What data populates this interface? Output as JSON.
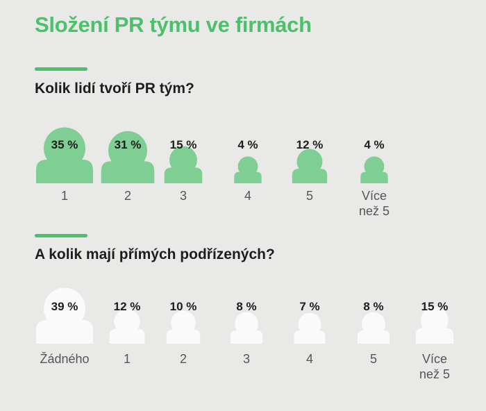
{
  "title": "Složení PR týmu ve firmách",
  "accent_color": "#4cc06a",
  "chart_data": [
    {
      "type": "bar",
      "title": "Kolik lidí tvoří PR tým?",
      "icon": "person-icon",
      "color": "#7fce94",
      "categories": [
        "1",
        "2",
        "3",
        "4",
        "5",
        "Více\nnež 5"
      ],
      "values": [
        35,
        31,
        15,
        4,
        12,
        4
      ],
      "value_labels": [
        "35 %",
        "31 %",
        "15 %",
        "4 %",
        "12 %",
        "4 %"
      ]
    },
    {
      "type": "bar",
      "title": "A kolik mají přímých podřízených?",
      "icon": "person-icon",
      "color": "#fafafa",
      "categories": [
        "Žádného",
        "1",
        "2",
        "3",
        "4",
        "5",
        "Více\nnež 5"
      ],
      "values": [
        39,
        12,
        10,
        8,
        7,
        8,
        15
      ],
      "value_labels": [
        "39 %",
        "12 %",
        "10 %",
        "8 %",
        "7 %",
        "8 %",
        "15 %"
      ]
    }
  ]
}
